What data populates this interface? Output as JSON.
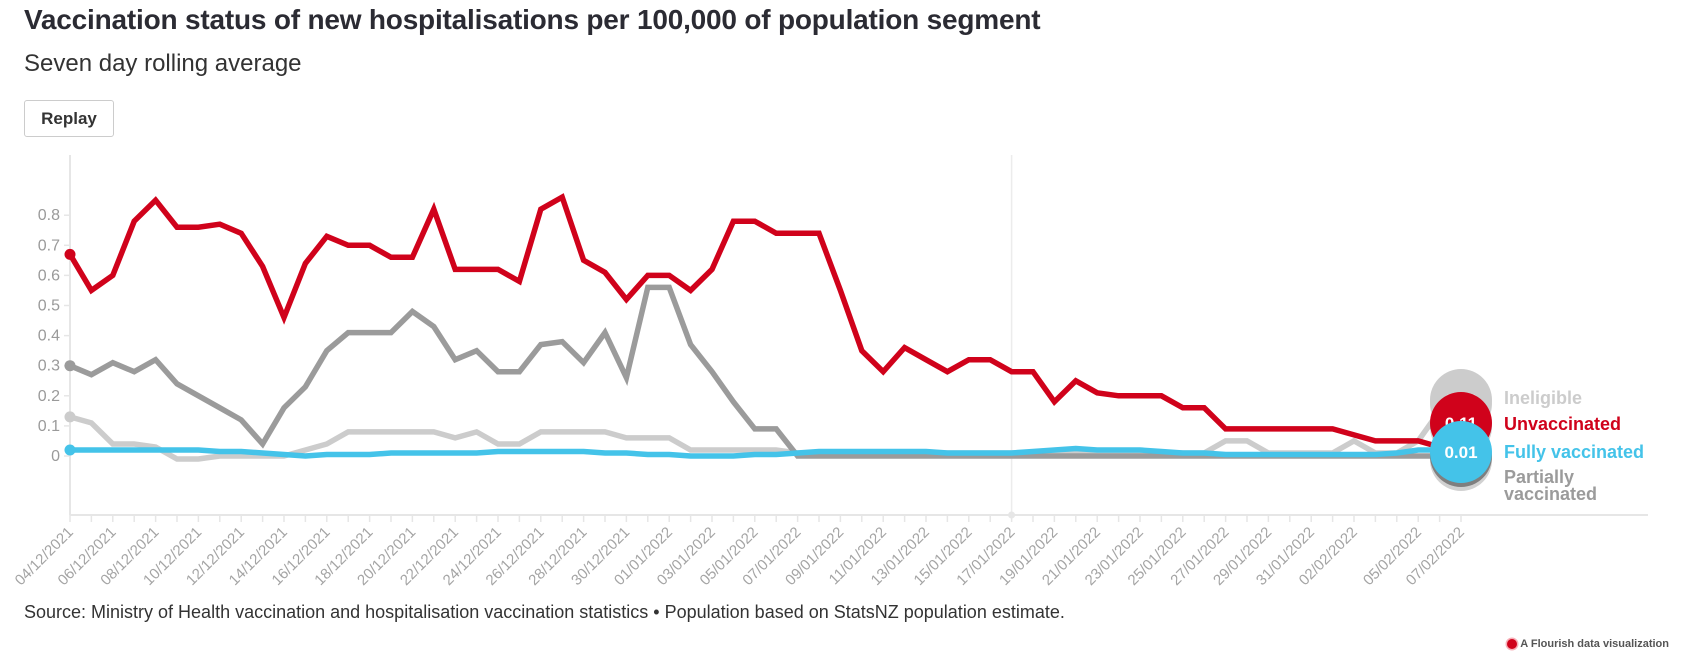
{
  "header": {
    "title": "Vaccination status of new hospitalisations per 100,000 of population segment",
    "subtitle": "Seven day rolling average",
    "replay_label": "Replay"
  },
  "footer": {
    "source": "Source: Ministry of Health vaccination and hospitalisation vaccination statistics • Population based on StatsNZ population estimate.",
    "flourish_label": "A Flourish data visualization",
    "flourish_icon": "flourish-logo-icon"
  },
  "chart_data": {
    "type": "line",
    "title": "Vaccination status of new hospitalisations per 100,000 of population segment",
    "subtitle": "Seven day rolling average",
    "xlabel": "",
    "ylabel": "",
    "ylim": [
      -0.1,
      0.9
    ],
    "yticks": [
      0,
      0.1,
      0.2,
      0.3,
      0.4,
      0.5,
      0.6,
      0.7,
      0.8
    ],
    "ytick_labels": [
      "0",
      "0.1",
      "0.2",
      "0.3",
      "0.4",
      "0.5",
      "0.6",
      "0.7",
      "0.8"
    ],
    "grid": false,
    "legend_placement": "right (end-of-line labels)",
    "highlight_date": "17/01/2022",
    "x": [
      "04/12/2021",
      "05/12/2021",
      "06/12/2021",
      "07/12/2021",
      "08/12/2021",
      "09/12/2021",
      "10/12/2021",
      "11/12/2021",
      "12/12/2021",
      "13/12/2021",
      "14/12/2021",
      "15/12/2021",
      "16/12/2021",
      "17/12/2021",
      "18/12/2021",
      "19/12/2021",
      "20/12/2021",
      "21/12/2021",
      "22/12/2021",
      "23/12/2021",
      "24/12/2021",
      "25/12/2021",
      "26/12/2021",
      "27/12/2021",
      "28/12/2021",
      "29/12/2021",
      "30/12/2021",
      "31/12/2021",
      "01/01/2022",
      "02/01/2022",
      "03/01/2022",
      "04/01/2022",
      "05/01/2022",
      "06/01/2022",
      "07/01/2022",
      "08/01/2022",
      "09/01/2022",
      "10/01/2022",
      "11/01/2022",
      "12/01/2022",
      "13/01/2022",
      "14/01/2022",
      "15/01/2022",
      "16/01/2022",
      "17/01/2022",
      "18/01/2022",
      "19/01/2022",
      "20/01/2022",
      "21/01/2022",
      "22/01/2022",
      "23/01/2022",
      "24/01/2022",
      "25/01/2022",
      "26/01/2022",
      "27/01/2022",
      "28/01/2022",
      "29/01/2022",
      "30/01/2022",
      "31/01/2022",
      "01/02/2022",
      "02/02/2022",
      "03/02/2022",
      "04/02/2022",
      "05/02/2022",
      "06/02/2022",
      "07/02/2022"
    ],
    "x_tick_labels": [
      "04/12/2021",
      "06/12/2021",
      "08/12/2021",
      "10/12/2021",
      "12/12/2021",
      "14/12/2021",
      "16/12/2021",
      "18/12/2021",
      "20/12/2021",
      "22/12/2021",
      "24/12/2021",
      "26/12/2021",
      "28/12/2021",
      "30/12/2021",
      "01/01/2022",
      "03/01/2022",
      "05/01/2022",
      "07/01/2022",
      "09/01/2022",
      "11/01/2022",
      "13/01/2022",
      "15/01/2022",
      "17/01/2022",
      "19/01/2022",
      "21/01/2022",
      "23/01/2022",
      "25/01/2022",
      "27/01/2022",
      "29/01/2022",
      "31/01/2022",
      "02/02/2022",
      "05/02/2022",
      "07/02/2022"
    ],
    "series": [
      {
        "name": "Ineligible",
        "color": "#cccccc",
        "end_label": "0.20",
        "values": [
          0.13,
          0.11,
          0.04,
          0.04,
          0.03,
          -0.01,
          -0.01,
          0.0,
          0.0,
          0.0,
          0.0,
          0.02,
          0.04,
          0.08,
          0.08,
          0.08,
          0.08,
          0.08,
          0.06,
          0.08,
          0.04,
          0.04,
          0.08,
          0.08,
          0.08,
          0.08,
          0.06,
          0.06,
          0.06,
          0.02,
          0.02,
          0.02,
          0.02,
          0.02,
          0.01,
          0.01,
          0.01,
          0.01,
          0.01,
          0.01,
          0.01,
          0.01,
          0.01,
          0.01,
          0.01,
          0.01,
          0.01,
          0.01,
          0.01,
          0.01,
          0.01,
          0.01,
          0.01,
          0.01,
          0.05,
          0.05,
          0.01,
          0.01,
          0.01,
          0.01,
          0.05,
          0.01,
          0.01,
          0.05,
          0.15,
          0.2
        ]
      },
      {
        "name": "Unvaccinated",
        "color": "#d0021b",
        "end_label": "0.11",
        "values": [
          0.67,
          0.55,
          0.6,
          0.78,
          0.85,
          0.76,
          0.76,
          0.77,
          0.74,
          0.63,
          0.46,
          0.64,
          0.73,
          0.7,
          0.7,
          0.66,
          0.66,
          0.82,
          0.62,
          0.62,
          0.62,
          0.58,
          0.82,
          0.86,
          0.65,
          0.61,
          0.52,
          0.6,
          0.6,
          0.55,
          0.62,
          0.78,
          0.78,
          0.74,
          0.74,
          0.74,
          0.55,
          0.35,
          0.28,
          0.36,
          0.32,
          0.28,
          0.32,
          0.32,
          0.28,
          0.28,
          0.18,
          0.25,
          0.21,
          0.2,
          0.2,
          0.2,
          0.16,
          0.16,
          0.09,
          0.09,
          0.09,
          0.09,
          0.09,
          0.09,
          0.07,
          0.05,
          0.05,
          0.05,
          0.03,
          0.11
        ]
      },
      {
        "name": "Fully vaccinated",
        "color": "#44c3e9",
        "end_label": "0.01",
        "values": [
          0.02,
          0.02,
          0.02,
          0.02,
          0.02,
          0.02,
          0.02,
          0.015,
          0.015,
          0.01,
          0.005,
          0.0,
          0.005,
          0.005,
          0.005,
          0.01,
          0.01,
          0.01,
          0.01,
          0.01,
          0.015,
          0.015,
          0.015,
          0.015,
          0.015,
          0.01,
          0.01,
          0.005,
          0.005,
          0.0,
          0.0,
          0.0,
          0.005,
          0.005,
          0.01,
          0.015,
          0.015,
          0.015,
          0.015,
          0.015,
          0.015,
          0.01,
          0.01,
          0.01,
          0.01,
          0.015,
          0.02,
          0.025,
          0.02,
          0.02,
          0.02,
          0.015,
          0.01,
          0.01,
          0.005,
          0.005,
          0.005,
          0.005,
          0.005,
          0.005,
          0.005,
          0.005,
          0.01,
          0.02,
          0.02,
          0.01
        ]
      },
      {
        "name": "Partially vaccinated",
        "color": "#9b9b9b",
        "end_label": "0.00",
        "values": [
          0.3,
          0.27,
          0.31,
          0.28,
          0.32,
          0.24,
          0.2,
          0.16,
          0.12,
          0.04,
          0.16,
          0.23,
          0.35,
          0.41,
          0.41,
          0.41,
          0.48,
          0.43,
          0.32,
          0.35,
          0.28,
          0.28,
          0.37,
          0.38,
          0.31,
          0.41,
          0.26,
          0.56,
          0.56,
          0.37,
          0.28,
          0.18,
          0.09,
          0.09,
          0.0,
          0.0,
          0.0,
          0.0,
          0.0,
          0.0,
          0.0,
          0.0,
          0.0,
          0.0,
          0.0,
          0.0,
          0.0,
          0.0,
          0.0,
          0.0,
          0.0,
          0.0,
          0.0,
          0.0,
          0.0,
          0.0,
          0.0,
          0.0,
          0.0,
          0.0,
          0.0,
          0.0,
          0.0,
          0.0,
          0.0,
          0.0
        ]
      }
    ],
    "legend": [
      {
        "label": "Ineligible",
        "color": "#cccccc"
      },
      {
        "label": "Unvaccinated",
        "color": "#d0021b"
      },
      {
        "label": "Fully vaccinated",
        "color": "#44c3e9"
      },
      {
        "label": "Partially vaccinated",
        "color": "#9b9b9b"
      }
    ]
  }
}
